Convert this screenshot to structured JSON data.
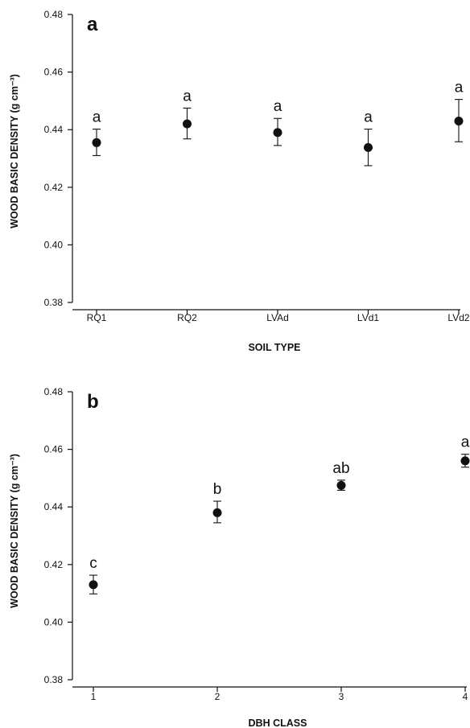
{
  "chart_data": [
    {
      "type": "scatter",
      "panel_label": "a",
      "xlabel": "SOIL TYPE",
      "ylabel": "WOOD BASIC DENSITY (g cm⁻³)",
      "ylim": [
        0.38,
        0.48
      ],
      "yticks": [
        "0.38",
        "0.40",
        "0.42",
        "0.44",
        "0.46",
        "0.48"
      ],
      "categories": [
        "RQ1",
        "RQ2",
        "LVAd",
        "LVd1",
        "LVd2"
      ],
      "series": [
        {
          "values": [
            0.4355,
            0.442,
            0.439,
            0.4338,
            0.443
          ],
          "err_low": [
            0.431,
            0.4368,
            0.4345,
            0.4275,
            0.4358
          ],
          "err_high": [
            0.4402,
            0.4475,
            0.4439,
            0.4402,
            0.4505
          ],
          "letters": [
            "a",
            "a",
            "a",
            "a",
            "a"
          ]
        }
      ]
    },
    {
      "type": "scatter",
      "panel_label": "b",
      "xlabel": "DBH CLASS",
      "ylabel": "WOOD BASIC DENSITY (g cm⁻³)",
      "ylim": [
        0.38,
        0.48
      ],
      "yticks": [
        "0.38",
        "0.40",
        "0.42",
        "0.44",
        "0.46",
        "0.48"
      ],
      "categories": [
        "1",
        "2",
        "3",
        "4"
      ],
      "series": [
        {
          "values": [
            0.413,
            0.438,
            0.4475,
            0.456
          ],
          "err_low": [
            0.4098,
            0.4345,
            0.4458,
            0.4538
          ],
          "err_high": [
            0.4163,
            0.442,
            0.4493,
            0.4583
          ],
          "letters": [
            "c",
            "b",
            "ab",
            "a"
          ]
        }
      ]
    }
  ]
}
